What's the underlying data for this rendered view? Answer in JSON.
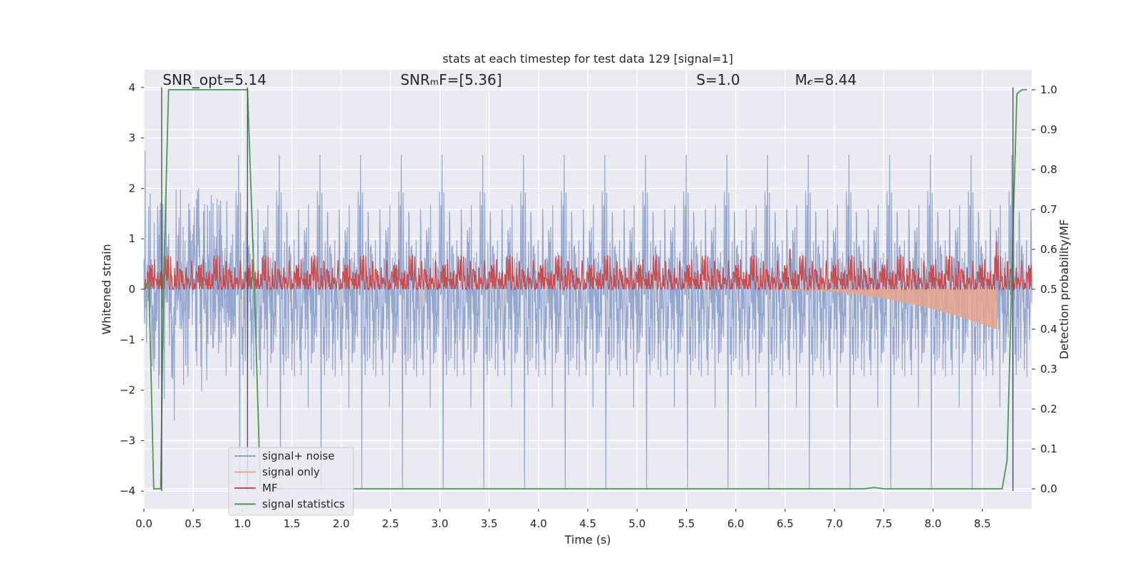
{
  "chart_data": {
    "type": "line",
    "title": "stats at each timestep for test data 129 [signal=1]",
    "xlabel": "Time (s)",
    "ylabel_left": "Whitened strain",
    "ylabel_right": "Detection probability/MF",
    "xlim": [
      0,
      9.0
    ],
    "ylim_left": [
      -4.35,
      4.35
    ],
    "ylim_right": [
      -0.05,
      1.05
    ],
    "xticks": [
      "0.0",
      "0.5",
      "1.0",
      "1.5",
      "2.0",
      "2.5",
      "3.0",
      "3.5",
      "4.0",
      "4.5",
      "5.0",
      "5.5",
      "6.0",
      "6.5",
      "7.0",
      "7.5",
      "8.0",
      "8.5"
    ],
    "xtick_values": [
      0,
      0.5,
      1.0,
      1.5,
      2.0,
      2.5,
      3.0,
      3.5,
      4.0,
      4.5,
      5.0,
      5.5,
      6.0,
      6.5,
      7.0,
      7.5,
      8.0,
      8.5
    ],
    "yticks_left": [
      "−4",
      "−3",
      "−2",
      "−1",
      "0",
      "1",
      "2",
      "3",
      "4"
    ],
    "ytick_values_left": [
      -4,
      -3,
      -2,
      -1,
      0,
      1,
      2,
      3,
      4
    ],
    "yticks_right": [
      "0.0",
      "0.1",
      "0.2",
      "0.3",
      "0.4",
      "0.5",
      "0.6",
      "0.7",
      "0.8",
      "0.9",
      "1.0"
    ],
    "ytick_values_right": [
      0,
      0.1,
      0.2,
      0.3,
      0.4,
      0.5,
      0.6,
      0.7,
      0.8,
      0.9,
      1.0
    ],
    "grid": true,
    "legend_position": "lower-left",
    "annotations": [
      {
        "id": "snr-opt",
        "text": "SNR_opt=5.14",
        "x": 0.19,
        "y": 4.05
      },
      {
        "id": "snr-mf",
        "text": "SNRₘF=[5.36]",
        "x": 2.6,
        "y": 4.05
      },
      {
        "id": "s-value",
        "text": "S=1.0",
        "x": 5.6,
        "y": 4.05
      },
      {
        "id": "mc-value",
        "text": "M𝒸=8.44",
        "x": 6.6,
        "y": 4.05
      }
    ],
    "vertical_lines": [
      {
        "x": 0.18,
        "ymin": -4.0,
        "ymax": 4.0
      },
      {
        "x": 1.05,
        "ymin": -4.0,
        "ymax": 4.0
      },
      {
        "x": 8.81,
        "ymin": -4.0,
        "ymax": 4.0
      }
    ],
    "series": [
      {
        "name": "signal+ noise",
        "color": "#8da0cb",
        "axis": "left",
        "kind": "noise",
        "t_start": 0.0,
        "t_end": 9.0,
        "sigma": 1.0
      },
      {
        "name": "signal only",
        "color": "#e8a58c",
        "axis": "left",
        "kind": "chirp",
        "t_start": 6.3,
        "t_end": 8.65,
        "peak_amplitude": 0.8
      },
      {
        "name": "MF",
        "color": "#c44e52",
        "axis": "right",
        "kind": "mf",
        "t_start": 0.0,
        "t_end": 9.0,
        "mean": 0.525,
        "spread": 0.03,
        "spikes": [
          {
            "x": 6.55,
            "y": 0.6
          },
          {
            "x": 8.64,
            "y": 0.62
          }
        ]
      },
      {
        "name": "signal statistics",
        "color": "#4c9a52",
        "axis": "right",
        "kind": "line",
        "x": [
          0.0,
          0.05,
          0.1,
          0.17,
          0.2,
          0.25,
          0.3,
          1.05,
          1.12,
          1.18,
          2.0,
          3.0,
          4.0,
          5.0,
          6.0,
          7.0,
          7.3,
          7.4,
          7.5,
          8.0,
          8.7,
          8.75,
          8.8,
          8.85,
          8.9,
          8.95
        ],
        "y": [
          0.5,
          0.52,
          0.0,
          0.0,
          0.52,
          1.0,
          1.0,
          1.0,
          0.5,
          0.0,
          0.0,
          0.0,
          0.0,
          0.0,
          0.0,
          0.0,
          0.0,
          0.003,
          0.0,
          0.0,
          0.0,
          0.07,
          0.55,
          0.99,
          1.0,
          1.0
        ]
      }
    ]
  }
}
